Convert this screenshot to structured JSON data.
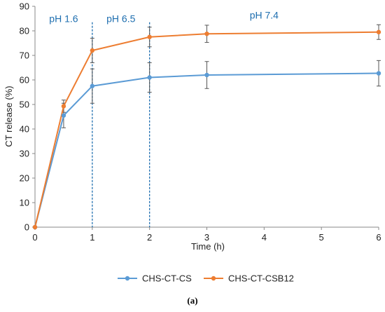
{
  "colors": {
    "series_1": "#5B9BD5",
    "series_2": "#ED7D31",
    "phase": "#1F6FB0",
    "axis": "#888888",
    "errorbar": "#555555"
  },
  "chart_data": {
    "type": "line",
    "xlabel": "Time (h)",
    "ylabel": "CT release (%)",
    "xlim": [
      0,
      6
    ],
    "ylim": [
      0,
      90
    ],
    "x_ticks": [
      0,
      1,
      2,
      3,
      4,
      5,
      6
    ],
    "y_ticks": [
      0,
      10,
      20,
      30,
      40,
      50,
      60,
      70,
      80,
      90
    ],
    "grid": false,
    "legend_position": "bottom",
    "x": [
      0,
      0.5,
      1,
      2,
      3,
      6
    ],
    "series": [
      {
        "name": "CHS-CT-CS",
        "color": "#5B9BD5",
        "values": [
          0,
          45.5,
          57.5,
          61,
          62,
          62.7
        ],
        "errors": [
          0,
          5,
          7,
          6,
          5.5,
          5.2
        ]
      },
      {
        "name": "CHS-CT-CSB12",
        "color": "#ED7D31",
        "values": [
          0,
          49.3,
          72,
          77.5,
          78.8,
          79.5
        ],
        "errors": [
          0,
          2.5,
          5,
          4,
          3.5,
          3
        ]
      }
    ],
    "phase_lines": [
      1,
      2
    ],
    "phase_labels": [
      {
        "text": "pH 1.6",
        "x": 0.5,
        "y": 85
      },
      {
        "text": "pH 6.5",
        "x": 1.5,
        "y": 85
      },
      {
        "text": "pH 7.4",
        "x": 4.0,
        "y": 86.5
      }
    ],
    "caption": "(a)"
  }
}
